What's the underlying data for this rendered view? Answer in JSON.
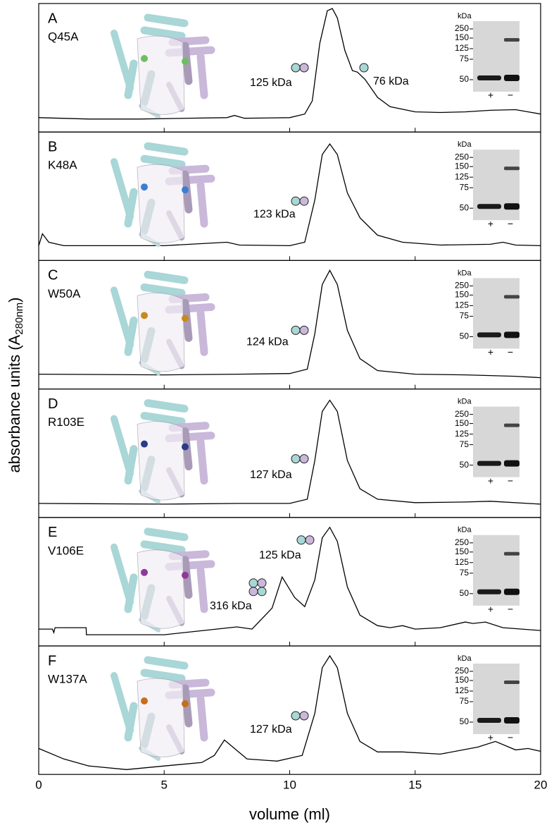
{
  "y_label": {
    "text": "absorbance units (A",
    "sub": "280nm",
    "close": ")"
  },
  "chart_data": [
    {
      "type": "line",
      "panel": "A",
      "mutant": "Q45A",
      "mutant_color": "#6cbf5f",
      "xlim": [
        0,
        20
      ],
      "ylim": [
        0,
        1
      ],
      "xticks": [
        0,
        5,
        10,
        15,
        20
      ],
      "x": [
        0,
        2,
        4,
        7.5,
        7.8,
        8.2,
        10,
        10.6,
        10.9,
        11.2,
        11.5,
        11.7,
        11.9,
        12.2,
        12.5,
        12.7,
        13,
        13.5,
        14,
        15,
        16,
        17,
        18,
        19,
        19.5,
        20
      ],
      "series": [
        {
          "color": "#000000",
          "values": [
            0.112,
            0.101,
            0.101,
            0.112,
            0.129,
            0.107,
            0.112,
            0.14,
            0.242,
            0.691,
            0.944,
            0.961,
            0.888,
            0.635,
            0.478,
            0.466,
            0.41,
            0.27,
            0.197,
            0.157,
            0.152,
            0.157,
            0.169,
            0.174,
            0.157,
            0.14
          ]
        }
      ],
      "annotations": [
        "125 kDa",
        "76 kDa"
      ],
      "gel": {
        "unit": "kDa",
        "markers": [
          "250",
          "150",
          "125",
          "75",
          "50"
        ],
        "lanes": [
          "+",
          "−"
        ]
      }
    },
    {
      "type": "line",
      "panel": "B",
      "mutant": "K48A",
      "mutant_color": "#3a7fd5",
      "xlim": [
        0,
        20
      ],
      "ylim": [
        0,
        1
      ],
      "xticks": [
        0,
        5,
        10,
        15,
        20
      ],
      "x": [
        0,
        0.15,
        0.4,
        1,
        5,
        7.5,
        8,
        10,
        10.6,
        11,
        11.3,
        11.6,
        11.9,
        12.3,
        12.8,
        13.5,
        14.5,
        16,
        18,
        18.5,
        19,
        20
      ],
      "series": [
        {
          "color": "#000000",
          "values": [
            0.115,
            0.208,
            0.142,
            0.115,
            0.115,
            0.142,
            0.12,
            0.115,
            0.142,
            0.47,
            0.825,
            0.907,
            0.825,
            0.525,
            0.333,
            0.197,
            0.142,
            0.12,
            0.126,
            0.142,
            0.12,
            0.115
          ]
        }
      ],
      "annotations": [
        "123 kDa"
      ],
      "gel": {
        "unit": "kDa",
        "markers": [
          "250",
          "150",
          "125",
          "75",
          "50"
        ],
        "lanes": [
          "+",
          "−"
        ]
      }
    },
    {
      "type": "line",
      "panel": "C",
      "mutant": "W50A",
      "mutant_color": "#c88a1e",
      "xlim": [
        0,
        20
      ],
      "ylim": [
        0,
        1
      ],
      "xticks": [
        0,
        5,
        10,
        15,
        20
      ],
      "x": [
        0,
        5,
        8,
        10,
        10.7,
        11,
        11.3,
        11.6,
        11.9,
        12.3,
        12.8,
        13.5,
        15,
        17,
        19,
        20
      ],
      "series": [
        {
          "color": "#000000",
          "values": [
            0.115,
            0.11,
            0.115,
            0.12,
            0.154,
            0.429,
            0.813,
            0.923,
            0.813,
            0.456,
            0.236,
            0.143,
            0.115,
            0.11,
            0.099,
            0.088
          ]
        }
      ],
      "annotations": [
        "124 kDa"
      ],
      "gel": {
        "unit": "kDa",
        "markers": [
          "250",
          "150",
          "125",
          "75",
          "50"
        ],
        "lanes": [
          "+",
          "−"
        ]
      }
    },
    {
      "type": "line",
      "panel": "D",
      "mutant": "R103E",
      "mutant_color": "#2b3b8a",
      "xlim": [
        0,
        20
      ],
      "ylim": [
        0,
        1
      ],
      "xticks": [
        0,
        5,
        10,
        15,
        20
      ],
      "x": [
        0,
        5,
        8,
        10,
        10.7,
        11,
        11.3,
        11.6,
        11.9,
        12.3,
        12.8,
        13.5,
        15,
        17,
        18,
        20
      ],
      "series": [
        {
          "color": "#000000",
          "values": [
            0.109,
            0.104,
            0.109,
            0.109,
            0.142,
            0.443,
            0.825,
            0.913,
            0.825,
            0.443,
            0.224,
            0.142,
            0.115,
            0.12,
            0.126,
            0.104
          ]
        }
      ],
      "annotations": [
        "127 kDa"
      ],
      "gel": {
        "unit": "kDa",
        "markers": [
          "250",
          "150",
          "125",
          "75",
          "50"
        ],
        "lanes": [
          "+",
          "−"
        ]
      }
    },
    {
      "type": "line",
      "panel": "E",
      "mutant": "V106E",
      "mutant_color": "#8e3a96",
      "xlim": [
        0,
        20
      ],
      "ylim": [
        0,
        1
      ],
      "xticks": [
        0,
        5,
        10,
        15,
        20
      ],
      "x": [
        0,
        0.55,
        0.6,
        0.65,
        1.89,
        1.9,
        5,
        7.9,
        8.5,
        9.3,
        9.7,
        10.2,
        10.6,
        11,
        11.3,
        11.6,
        11.9,
        12.3,
        12.8,
        13.5,
        14,
        14.5,
        15,
        16,
        17,
        17.3,
        17.8,
        18.5,
        20
      ],
      "series": [
        {
          "color": "#000000",
          "values": [
            0.131,
            0.131,
            0.104,
            0.142,
            0.142,
            0.087,
            0.087,
            0.148,
            0.131,
            0.295,
            0.536,
            0.377,
            0.306,
            0.514,
            0.842,
            0.923,
            0.814,
            0.459,
            0.24,
            0.158,
            0.142,
            0.158,
            0.131,
            0.142,
            0.186,
            0.175,
            0.186,
            0.142,
            0.12
          ]
        }
      ],
      "annotations": [
        "125 kDa",
        "316 kDa"
      ],
      "gel": {
        "unit": "kDa",
        "markers": [
          "250",
          "150",
          "125",
          "75",
          "50"
        ],
        "lanes": [
          "+",
          "−"
        ]
      }
    },
    {
      "type": "line",
      "panel": "F",
      "mutant": "W137A",
      "mutant_color": "#c86d1a",
      "xlim": [
        0,
        20
      ],
      "ylim": [
        0,
        1
      ],
      "xticks": [
        0,
        5,
        10,
        15,
        20
      ],
      "x_label": "volume (ml)",
      "x": [
        0,
        1,
        2,
        3.5,
        5,
        6.5,
        7,
        7.4,
        7.8,
        8.3,
        9.5,
        10.5,
        11,
        11.3,
        11.6,
        11.9,
        12.3,
        12.8,
        13.5,
        14.5,
        16,
        17.5,
        18.2,
        19,
        19.5,
        20
      ],
      "series": [
        {
          "color": "#000000",
          "values": [
            0.202,
            0.12,
            0.066,
            0.038,
            0.066,
            0.093,
            0.148,
            0.268,
            0.202,
            0.12,
            0.104,
            0.148,
            0.475,
            0.831,
            0.923,
            0.831,
            0.475,
            0.257,
            0.175,
            0.175,
            0.158,
            0.213,
            0.257,
            0.191,
            0.202,
            0.18
          ]
        }
      ],
      "annotations": [
        "127 kDa"
      ],
      "gel": {
        "unit": "kDa",
        "markers": [
          "250",
          "150",
          "125",
          "75",
          "50"
        ],
        "lanes": [
          "+",
          "−"
        ]
      }
    }
  ]
}
